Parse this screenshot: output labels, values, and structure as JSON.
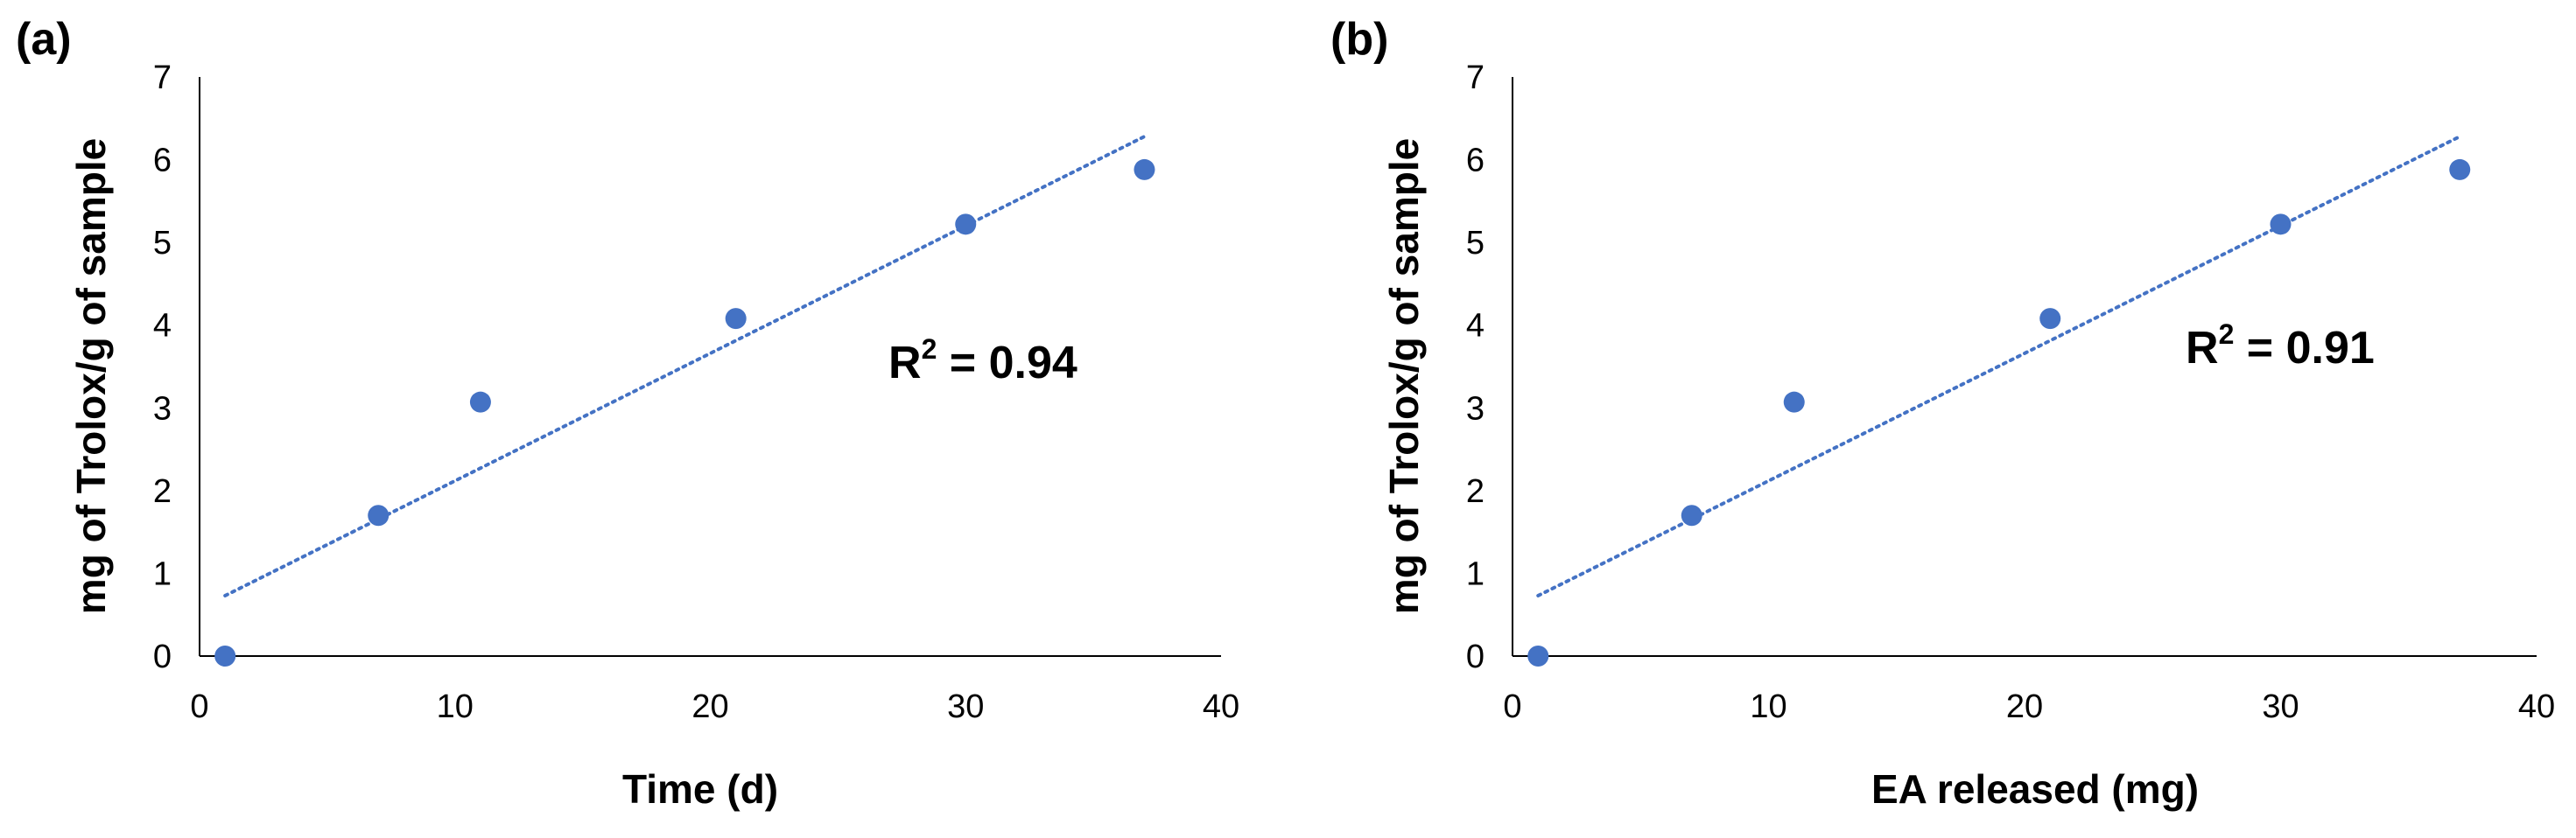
{
  "chart_data": [
    {
      "type": "scatter",
      "panel_label": "(a)",
      "xlabel": "Time (d)",
      "ylabel": "mg of Trolox/g of sample",
      "xlim": [
        0,
        40
      ],
      "ylim": [
        0,
        7
      ],
      "xticks": [
        0,
        10,
        20,
        30,
        40
      ],
      "yticks": [
        0,
        1,
        2,
        3,
        4,
        5,
        6,
        7
      ],
      "grid": false,
      "series": [
        {
          "name": "data",
          "color": "#4472C4",
          "x": [
            1,
            7,
            11,
            21,
            30,
            37
          ],
          "y": [
            0.0,
            1.7,
            3.07,
            4.08,
            5.22,
            5.88
          ]
        }
      ],
      "trendline": {
        "style": "dotted",
        "color": "#4472C4",
        "x": [
          1,
          37
        ],
        "y": [
          0.73,
          6.28
        ]
      },
      "annotation": {
        "text": "R",
        "superscript": "2",
        "suffix": " = 0.94"
      }
    },
    {
      "type": "scatter",
      "panel_label": "(b)",
      "xlabel": "EA released (mg)",
      "ylabel": "mg of Trolox/g of sample",
      "xlim": [
        0,
        40
      ],
      "ylim": [
        0,
        7
      ],
      "xticks": [
        0,
        10,
        20,
        30,
        40
      ],
      "yticks": [
        0,
        1,
        2,
        3,
        4,
        5,
        6,
        7
      ],
      "grid": false,
      "series": [
        {
          "name": "data",
          "color": "#4472C4",
          "x": [
            1,
            7,
            11,
            21,
            30,
            37
          ],
          "y": [
            0.0,
            1.7,
            3.07,
            4.08,
            5.22,
            5.88
          ]
        }
      ],
      "trendline": {
        "style": "dotted",
        "color": "#4472C4",
        "x": [
          1,
          37
        ],
        "y": [
          0.73,
          6.28
        ]
      },
      "annotation": {
        "text": "R",
        "superscript": "2",
        "suffix": " = 0.91"
      }
    }
  ]
}
